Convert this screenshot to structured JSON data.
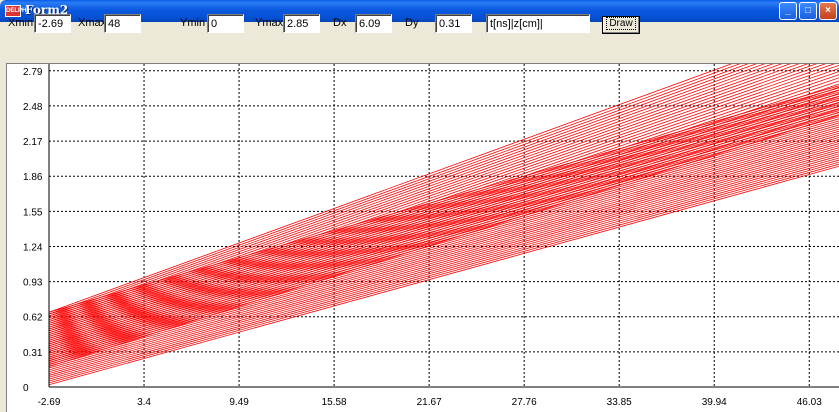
{
  "window": {
    "title": "Form2",
    "icon_label": "DELPHI",
    "buttons": {
      "minimize": "_",
      "maximize": "□",
      "close": "×"
    }
  },
  "toolbar": {
    "xmin_label": "Xmin",
    "xmin_value": "-2.69",
    "xmax_label": "Xmax",
    "xmax_value": "48",
    "ymin_label": "Ymin",
    "ymin_value": "0",
    "ymax_label": "Ymax",
    "ymax_value": "2.85",
    "dx_label": "Dx",
    "dx_value": "6.09",
    "dy_label": "Dy",
    "dy_value": "0.31",
    "formula_value": "t[ns]|z[cm]|",
    "draw_label": "Draw"
  },
  "chart_data": {
    "type": "line",
    "title": "",
    "xlabel": "",
    "ylabel": "",
    "xlim": [
      -2.69,
      48
    ],
    "ylim": [
      0,
      2.85
    ],
    "grid": true,
    "grid_style": "dashed",
    "line_color": "#ff0000",
    "x_ticks": [
      "-2.69",
      "3.4",
      "9.49",
      "15.58",
      "21.67",
      "27.76",
      "33.85",
      "39.94",
      "46.03"
    ],
    "y_ticks": [
      "0",
      "0.31",
      "0.62",
      "0.93",
      "1.24",
      "1.55",
      "1.86",
      "2.17",
      "2.48",
      "2.79"
    ],
    "series_groups": [
      {
        "count": 40,
        "x_start": -2.69,
        "y_start_range": [
          0.02,
          0.66
        ],
        "x_end": 48,
        "y_end_range": [
          1.95,
          2.66
        ]
      },
      {
        "count": 30,
        "x_start": -2.69,
        "y_start_range": [
          0.18,
          0.66
        ],
        "x_end": 48,
        "y_end_range": [
          2.4,
          3.2
        ]
      }
    ]
  }
}
